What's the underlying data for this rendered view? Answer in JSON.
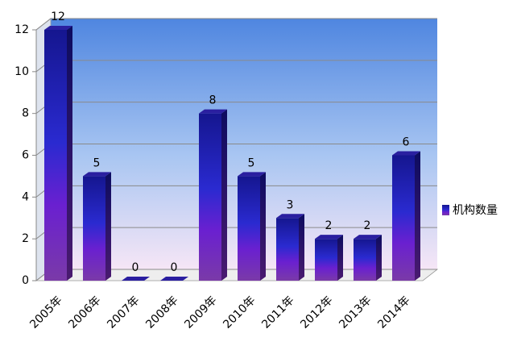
{
  "chart_data": {
    "type": "bar3d",
    "categories": [
      "2005年",
      "2006年",
      "2007年",
      "2008年",
      "2009年",
      "2010年",
      "2011年",
      "2012年",
      "2013年",
      "2014年"
    ],
    "series": [
      {
        "name": "机构数量",
        "color": "#2a1fa0",
        "values": [
          12,
          5,
          0,
          0,
          8,
          5,
          3,
          2,
          2,
          6
        ]
      }
    ],
    "ylim": [
      0,
      12
    ],
    "yticks": [
      0,
      2,
      4,
      6,
      8,
      10,
      12
    ],
    "grid": true,
    "legend": "right",
    "data_labels": true
  }
}
